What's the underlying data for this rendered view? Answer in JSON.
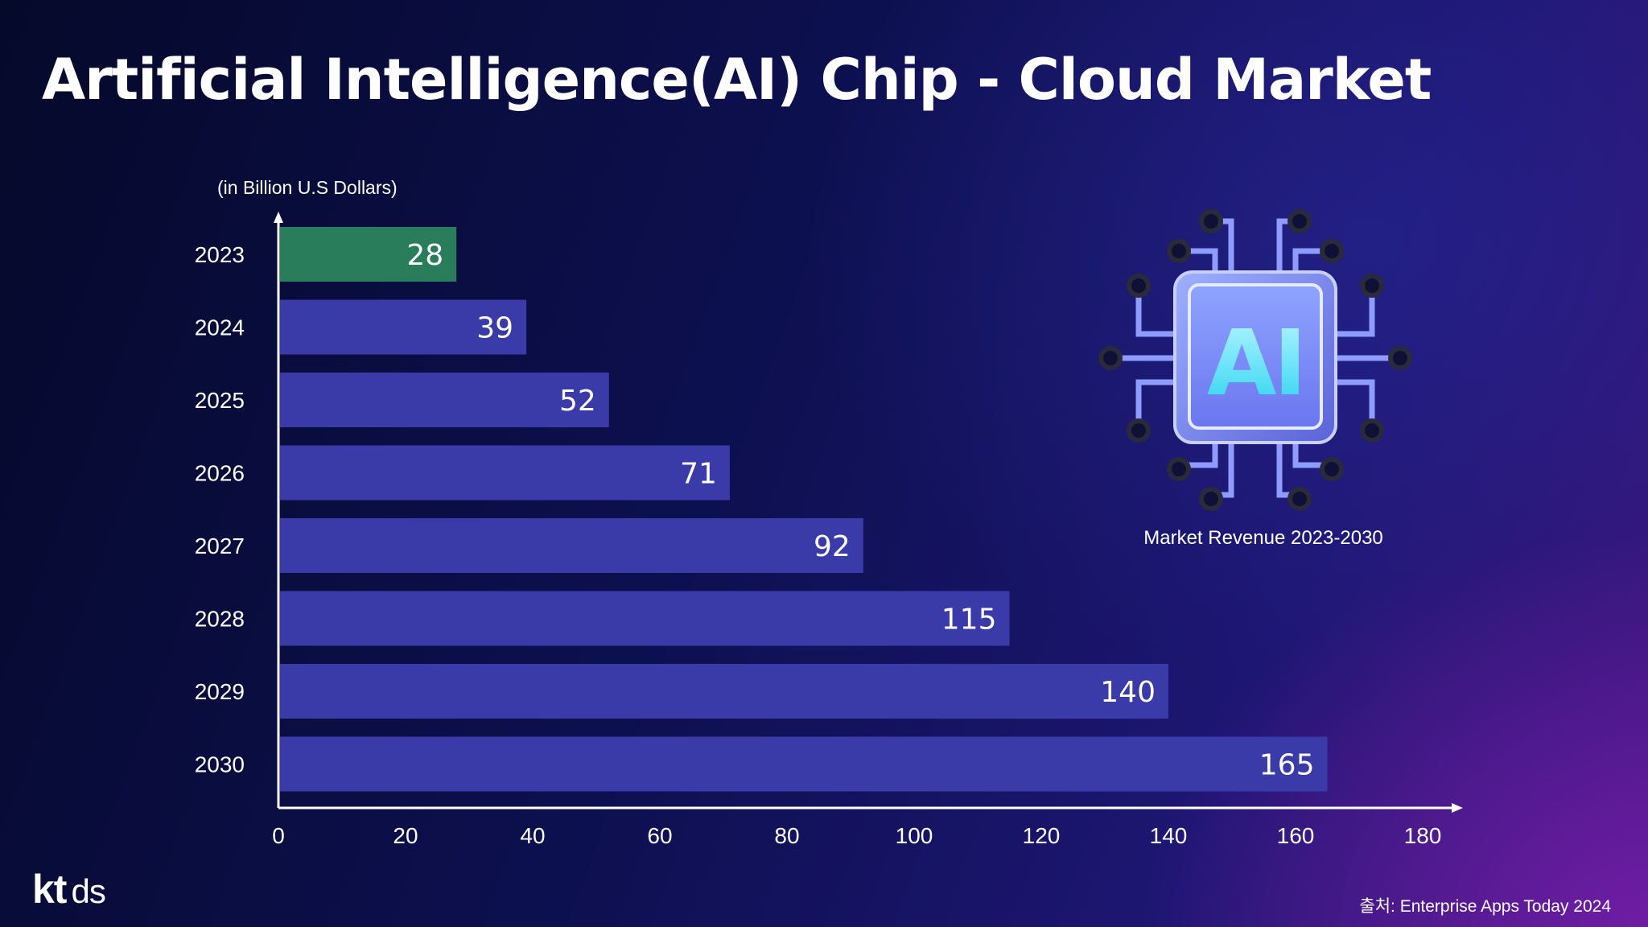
{
  "chart_data": {
    "type": "bar",
    "orientation": "horizontal",
    "title": "Artificial Intelligence(AI) Chip - Cloud Market",
    "unit_label": "(in Billion U.S Dollars)",
    "categories": [
      "2023",
      "2024",
      "2025",
      "2026",
      "2027",
      "2028",
      "2029",
      "2030"
    ],
    "values": [
      28,
      39,
      52,
      71,
      92,
      115,
      140,
      165
    ],
    "xlim": [
      0,
      180
    ],
    "xticks": [
      "0",
      "20",
      "40",
      "60",
      "80",
      "100",
      "120",
      "140",
      "160",
      "180"
    ],
    "highlight_category": "2023",
    "colors": {
      "bar": "#3a3aa8",
      "highlight": "#2a7d5a",
      "axis": "#ffffff"
    }
  },
  "illustration": {
    "chip_text": "AI",
    "caption": "Market Revenue 2023-2030"
  },
  "footer": {
    "logo_kt": "kt",
    "logo_ds": "ds",
    "source": "출처: Enterprise Apps Today 2024"
  }
}
